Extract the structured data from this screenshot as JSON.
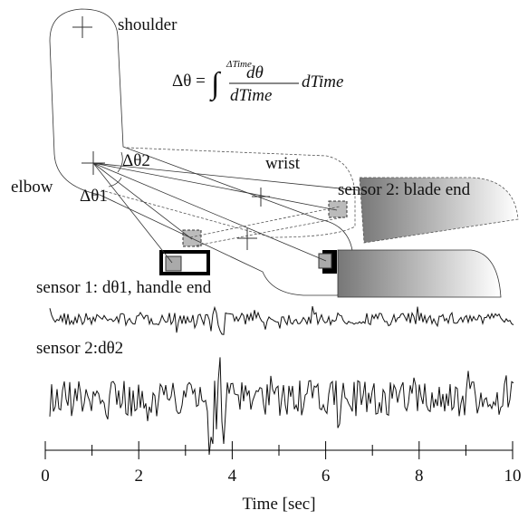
{
  "labels": {
    "shoulder": "shoulder",
    "elbow": "elbow",
    "wrist": "wrist",
    "sensor2_blade": "sensor 2: blade end",
    "dtheta2": "Δθ2",
    "dtheta1": "Δθ1",
    "sensor1_trace": "sensor 1: dθ1, handle end",
    "sensor2_trace": "sensor 2:dθ2"
  },
  "formula": {
    "lhs": "Δθ =",
    "integral": "∫",
    "upper": "ΔTime",
    "numerator": "dθ",
    "denominator": "dTime",
    "tail": "dTime"
  },
  "chart_data": {
    "type": "line",
    "xlabel": "Time [sec]",
    "xlim": [
      0,
      10
    ],
    "xticks": [
      0,
      2,
      4,
      6,
      8,
      10
    ]
  }
}
